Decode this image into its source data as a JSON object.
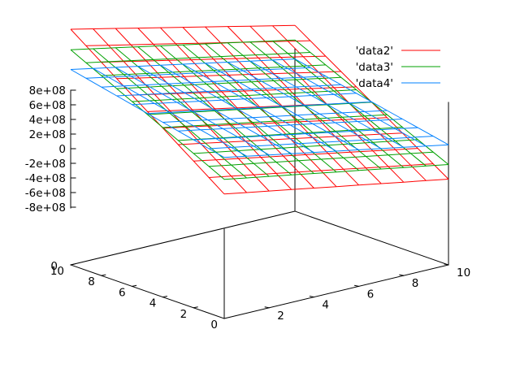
{
  "chart_data": {
    "type": "surface",
    "title": "",
    "xlabel": "",
    "ylabel": "",
    "zlabel": "",
    "x": [
      0,
      1,
      2,
      3,
      4,
      5,
      6,
      7,
      8,
      9,
      10
    ],
    "y": [
      0,
      1,
      2,
      3,
      4,
      5,
      6,
      7,
      8,
      9,
      10
    ],
    "xlim": [
      0,
      10
    ],
    "ylim": [
      0,
      10
    ],
    "zlim": [
      -800000000,
      800000000
    ],
    "x_ticks": [
      "2",
      "4",
      "6",
      "8",
      "10"
    ],
    "y_ticks": [
      "0",
      "2",
      "4",
      "6",
      "8",
      "10"
    ],
    "z_ticks": [
      "8e+08",
      "6e+08",
      "4e+08",
      "2e+08",
      "0",
      "-2e+08",
      "-4e+08",
      "-6e+08",
      "-8e+08"
    ],
    "x_origin_label": "0",
    "grid": false,
    "legend_position": "top-right",
    "series": [
      {
        "name": "'data2'",
        "color": "#ff0000",
        "corner_values": {
          "x0_y0": -620000000,
          "x10_y0": -1150000000,
          "x0_y10": 900000000,
          "x10_y10": 220000000
        }
      },
      {
        "name": "'data3'",
        "color": "#00a000",
        "corner_values": {
          "x0_y0": -420000000,
          "x10_y0": -950000000,
          "x0_y10": 620000000,
          "x10_y10": 20000000
        }
      },
      {
        "name": "'data4'",
        "color": "#0080ff",
        "corner_values": {
          "x0_y0": -120000000,
          "x10_y0": -680000000,
          "x0_y10": 350000000,
          "x10_y10": -240000000
        }
      }
    ]
  }
}
